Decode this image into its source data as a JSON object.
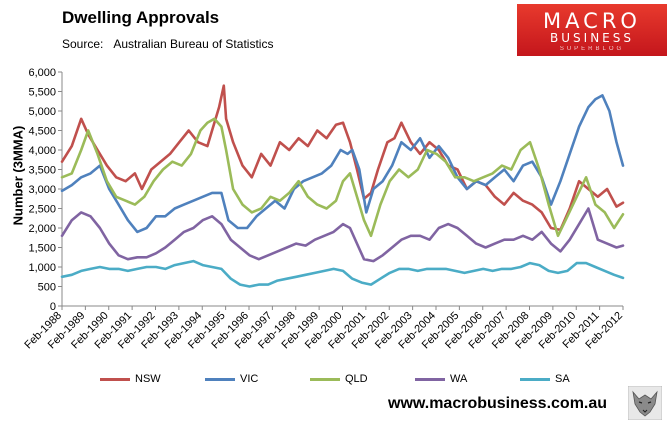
{
  "header": {
    "title": "Dwelling Approvals",
    "source_label": "Source:",
    "source_text": "Australian Bureau of Statistics"
  },
  "logo": {
    "line1": "MACRO",
    "line2": "BUSINESS",
    "line3": "SUPERBLOG"
  },
  "website": "www.macrobusiness.com.au",
  "chart_data": {
    "type": "line",
    "title": "Dwelling Approvals",
    "xlabel": "",
    "ylabel": "Number (3MMA)",
    "ylim": [
      0,
      6000
    ],
    "yticks": [
      "0",
      "500",
      "1,000",
      "1,500",
      "2,000",
      "2,500",
      "3,000",
      "3,500",
      "4,000",
      "4,500",
      "5,000",
      "5,500",
      "6,000"
    ],
    "xlim": [
      1988.08,
      2012.08
    ],
    "xtick_labels": [
      "Feb-1988",
      "Feb-1989",
      "Feb-1990",
      "Feb-1991",
      "Feb-1992",
      "Feb-1993",
      "Feb-1994",
      "Feb-1995",
      "Feb-1996",
      "Feb-1997",
      "Feb-1998",
      "Feb-1999",
      "Feb-2000",
      "Feb-2001",
      "Feb-2002",
      "Feb-2003",
      "Feb-2004",
      "Feb-2005",
      "Feb-2006",
      "Feb-2007",
      "Feb-2008",
      "Feb-2009",
      "Feb-2010",
      "Feb-2011",
      "Feb-2012"
    ],
    "grid": false,
    "legend_position": "bottom",
    "series": [
      {
        "name": "NSW",
        "color": "#c0504d",
        "x": [
          1988.08,
          1988.5,
          1988.9,
          1989.2,
          1989.6,
          1990.0,
          1990.4,
          1990.8,
          1991.2,
          1991.5,
          1991.9,
          1992.3,
          1992.7,
          1993.1,
          1993.5,
          1993.9,
          1994.3,
          1994.6,
          1994.8,
          1995.0,
          1995.1,
          1995.4,
          1995.8,
          1996.2,
          1996.6,
          1997.0,
          1997.4,
          1997.8,
          1998.2,
          1998.6,
          1999.0,
          1999.4,
          1999.8,
          2000.1,
          2000.4,
          2000.7,
          2001.0,
          2001.3,
          2001.6,
          2002.0,
          2002.3,
          2002.6,
          2003.0,
          2003.4,
          2003.8,
          2004.2,
          2004.6,
          2005.0,
          2005.4,
          2005.8,
          2006.2,
          2006.6,
          2007.0,
          2007.4,
          2007.8,
          2008.2,
          2008.6,
          2009.0,
          2009.4,
          2009.8,
          2010.2,
          2010.6,
          2011.0,
          2011.4,
          2011.8,
          2012.08
        ],
        "values": [
          3700,
          4100,
          4800,
          4400,
          4000,
          3600,
          3300,
          3200,
          3400,
          3000,
          3500,
          3700,
          3900,
          4200,
          4500,
          4200,
          4100,
          4700,
          5100,
          5650,
          4800,
          4200,
          3600,
          3300,
          3900,
          3600,
          4200,
          4000,
          4300,
          4100,
          4500,
          4300,
          4650,
          4700,
          4200,
          3500,
          2750,
          2900,
          3500,
          4200,
          4300,
          4700,
          4200,
          3900,
          4200,
          4000,
          3600,
          3500,
          3000,
          3200,
          3100,
          2800,
          2600,
          2900,
          2700,
          2600,
          2400,
          2000,
          1950,
          2500,
          3200,
          3000,
          2800,
          3000,
          2550,
          2650
        ]
      },
      {
        "name": "VIC",
        "color": "#4f81bd",
        "x": [
          1988.08,
          1988.5,
          1988.9,
          1989.3,
          1989.7,
          1990.1,
          1990.5,
          1990.9,
          1991.3,
          1991.7,
          1992.1,
          1992.5,
          1992.9,
          1993.3,
          1993.7,
          1994.1,
          1994.5,
          1994.9,
          1995.2,
          1995.6,
          1996.0,
          1996.4,
          1996.8,
          1997.2,
          1997.6,
          1998.0,
          1998.4,
          1998.8,
          1999.2,
          1999.6,
          2000.0,
          2000.3,
          2000.5,
          2000.8,
          2001.1,
          2001.4,
          2001.8,
          2002.2,
          2002.6,
          2003.0,
          2003.4,
          2003.8,
          2004.2,
          2004.6,
          2005.0,
          2005.4,
          2005.8,
          2006.2,
          2006.6,
          2007.0,
          2007.4,
          2007.8,
          2008.2,
          2008.6,
          2009.0,
          2009.4,
          2009.8,
          2010.2,
          2010.6,
          2010.9,
          2011.2,
          2011.5,
          2011.8,
          2012.08
        ],
        "values": [
          2950,
          3100,
          3300,
          3400,
          3600,
          3000,
          2600,
          2200,
          1900,
          2000,
          2300,
          2300,
          2500,
          2600,
          2700,
          2800,
          2900,
          2900,
          2200,
          2000,
          2000,
          2300,
          2500,
          2700,
          2500,
          3000,
          3200,
          3300,
          3400,
          3600,
          4000,
          3900,
          4000,
          3500,
          2400,
          3000,
          3200,
          3600,
          4200,
          4000,
          4300,
          3800,
          4100,
          3800,
          3300,
          3000,
          3200,
          3100,
          3300,
          3500,
          3200,
          3600,
          3700,
          3300,
          2600,
          3200,
          3900,
          4600,
          5100,
          5300,
          5400,
          5000,
          4200,
          3600
        ]
      },
      {
        "name": "QLD",
        "color": "#9bbb59",
        "x": [
          1988.08,
          1988.5,
          1988.9,
          1989.2,
          1989.6,
          1990.0,
          1990.4,
          1990.8,
          1991.2,
          1991.6,
          1992.0,
          1992.4,
          1992.8,
          1993.2,
          1993.6,
          1994.0,
          1994.3,
          1994.6,
          1994.9,
          1995.1,
          1995.4,
          1995.8,
          1996.2,
          1996.6,
          1997.0,
          1997.4,
          1997.8,
          1998.2,
          1998.6,
          1999.0,
          1999.4,
          1999.8,
          2000.1,
          2000.4,
          2000.7,
          2001.0,
          2001.3,
          2001.7,
          2002.1,
          2002.5,
          2002.9,
          2003.3,
          2003.7,
          2004.1,
          2004.5,
          2004.9,
          2005.3,
          2005.7,
          2006.1,
          2006.5,
          2006.9,
          2007.3,
          2007.7,
          2008.1,
          2008.5,
          2008.9,
          2009.3,
          2009.7,
          2010.1,
          2010.5,
          2010.9,
          2011.3,
          2011.7,
          2012.08
        ],
        "values": [
          3300,
          3400,
          4000,
          4500,
          3900,
          3200,
          2800,
          2700,
          2600,
          2800,
          3200,
          3500,
          3700,
          3600,
          3900,
          4500,
          4700,
          4800,
          4600,
          4000,
          3000,
          2600,
          2400,
          2500,
          2800,
          2700,
          2900,
          3200,
          2800,
          2600,
          2500,
          2700,
          3200,
          3400,
          2800,
          2200,
          1800,
          2600,
          3200,
          3500,
          3300,
          3500,
          4000,
          3900,
          3700,
          3300,
          3300,
          3200,
          3300,
          3400,
          3600,
          3500,
          4000,
          4200,
          3500,
          2600,
          1800,
          2300,
          2800,
          3300,
          2600,
          2400,
          2000,
          2350
        ]
      },
      {
        "name": "WA",
        "color": "#8064a2",
        "x": [
          1988.08,
          1988.5,
          1988.9,
          1989.3,
          1989.7,
          1990.1,
          1990.5,
          1990.9,
          1991.3,
          1991.7,
          1992.1,
          1992.5,
          1992.9,
          1993.3,
          1993.7,
          1994.1,
          1994.5,
          1994.9,
          1995.3,
          1995.7,
          1996.1,
          1996.5,
          1996.9,
          1997.3,
          1997.7,
          1998.1,
          1998.5,
          1998.9,
          1999.3,
          1999.7,
          2000.1,
          2000.4,
          2000.7,
          2001.0,
          2001.4,
          2001.8,
          2002.2,
          2002.6,
          2003.0,
          2003.4,
          2003.8,
          2004.2,
          2004.6,
          2005.0,
          2005.4,
          2005.8,
          2006.2,
          2006.6,
          2007.0,
          2007.4,
          2007.8,
          2008.2,
          2008.6,
          2009.0,
          2009.4,
          2009.8,
          2010.2,
          2010.6,
          2011.0,
          2011.4,
          2011.8,
          2012.08
        ],
        "values": [
          1800,
          2200,
          2400,
          2300,
          2000,
          1600,
          1300,
          1200,
          1250,
          1250,
          1350,
          1500,
          1700,
          1900,
          2000,
          2200,
          2300,
          2100,
          1700,
          1500,
          1300,
          1200,
          1300,
          1400,
          1500,
          1600,
          1550,
          1700,
          1800,
          1900,
          2100,
          2000,
          1600,
          1200,
          1150,
          1300,
          1500,
          1700,
          1800,
          1800,
          1700,
          2000,
          2100,
          2000,
          1800,
          1600,
          1500,
          1600,
          1700,
          1700,
          1800,
          1700,
          1900,
          1600,
          1400,
          1700,
          2100,
          2500,
          1700,
          1600,
          1500,
          1550
        ]
      },
      {
        "name": "SA",
        "color": "#4bacc6",
        "x": [
          1988.08,
          1988.5,
          1988.9,
          1989.3,
          1989.7,
          1990.1,
          1990.5,
          1990.9,
          1991.3,
          1991.7,
          1992.1,
          1992.5,
          1992.9,
          1993.3,
          1993.7,
          1994.1,
          1994.5,
          1994.9,
          1995.3,
          1995.7,
          1996.1,
          1996.5,
          1996.9,
          1997.3,
          1997.7,
          1998.1,
          1998.5,
          1998.9,
          1999.3,
          1999.7,
          2000.1,
          2000.5,
          2000.9,
          2001.3,
          2001.7,
          2002.1,
          2002.5,
          2002.9,
          2003.3,
          2003.7,
          2004.1,
          2004.5,
          2004.9,
          2005.3,
          2005.7,
          2006.1,
          2006.5,
          2006.9,
          2007.3,
          2007.7,
          2008.1,
          2008.5,
          2008.9,
          2009.3,
          2009.7,
          2010.1,
          2010.5,
          2010.9,
          2011.3,
          2011.7,
          2012.08
        ],
        "values": [
          750,
          800,
          900,
          950,
          1000,
          950,
          950,
          900,
          950,
          1000,
          1000,
          950,
          1050,
          1100,
          1150,
          1050,
          1000,
          950,
          700,
          550,
          500,
          550,
          550,
          650,
          700,
          750,
          800,
          850,
          900,
          950,
          900,
          700,
          600,
          550,
          700,
          850,
          950,
          950,
          900,
          950,
          950,
          950,
          900,
          850,
          900,
          950,
          900,
          950,
          950,
          1000,
          1100,
          1050,
          900,
          850,
          900,
          1100,
          1100,
          1000,
          900,
          800,
          720
        ]
      }
    ]
  }
}
